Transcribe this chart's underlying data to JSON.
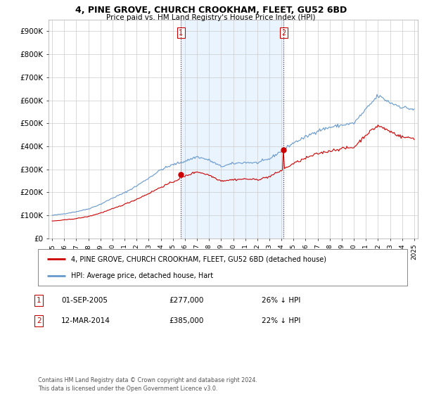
{
  "title": "4, PINE GROVE, CHURCH CROOKHAM, FLEET, GU52 6BD",
  "subtitle": "Price paid vs. HM Land Registry's House Price Index (HPI)",
  "ylabel_ticks": [
    "£0",
    "£100K",
    "£200K",
    "£300K",
    "£400K",
    "£500K",
    "£600K",
    "£700K",
    "£800K",
    "£900K"
  ],
  "ytick_values": [
    0,
    100000,
    200000,
    300000,
    400000,
    500000,
    600000,
    700000,
    800000,
    900000
  ],
  "ylim": [
    0,
    950000
  ],
  "sale1_date_num": 2005.67,
  "sale1_price": 277000,
  "sale1_label": "01-SEP-2005",
  "sale1_price_str": "£277,000",
  "sale1_pct": "26% ↓ HPI",
  "sale2_date_num": 2014.19,
  "sale2_price": 385000,
  "sale2_label": "12-MAR-2014",
  "sale2_price_str": "£385,000",
  "sale2_pct": "22% ↓ HPI",
  "legend_property": "4, PINE GROVE, CHURCH CROOKHAM, FLEET, GU52 6BD (detached house)",
  "legend_hpi": "HPI: Average price, detached house, Hart",
  "footnote": "Contains HM Land Registry data © Crown copyright and database right 2024.\nThis data is licensed under the Open Government Licence v3.0.",
  "property_color": "#cc0000",
  "hpi_color": "#6699cc",
  "hpi_fill_color": "#ddeeff",
  "vline_color": "#cc0000",
  "background_color": "#ffffff",
  "grid_color": "#cccccc",
  "xlim_start": 1994.7,
  "xlim_end": 2025.3
}
